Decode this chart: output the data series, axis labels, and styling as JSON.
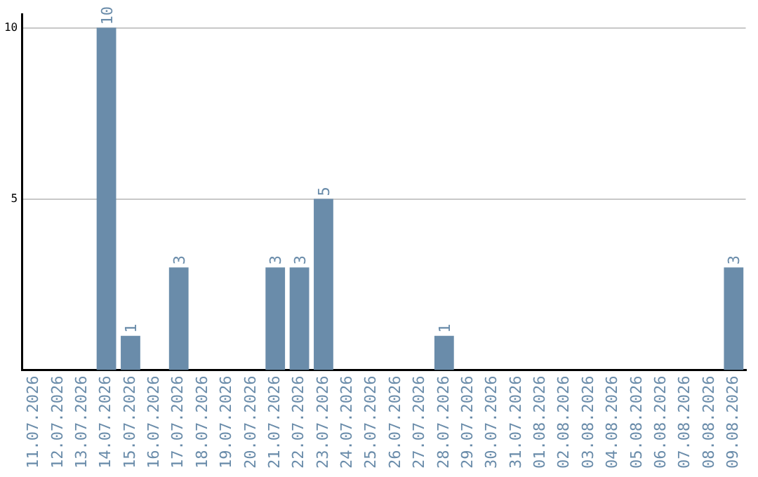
{
  "chart_data": {
    "type": "bar",
    "categories": [
      "11.07.2026",
      "12.07.2026",
      "13.07.2026",
      "14.07.2026",
      "15.07.2026",
      "16.07.2026",
      "17.07.2026",
      "18.07.2026",
      "19.07.2026",
      "20.07.2026",
      "21.07.2026",
      "22.07.2026",
      "23.07.2026",
      "24.07.2026",
      "25.07.2026",
      "26.07.2026",
      "27.07.2026",
      "28.07.2026",
      "29.07.2026",
      "30.07.2026",
      "31.07.2026",
      "01.08.2026",
      "02.08.2026",
      "03.08.2026",
      "04.08.2026",
      "05.08.2026",
      "06.08.2026",
      "07.08.2026",
      "08.08.2026",
      "09.08.2026"
    ],
    "values": [
      0,
      0,
      0,
      10,
      1,
      0,
      3,
      0,
      0,
      0,
      3,
      3,
      5,
      0,
      0,
      0,
      0,
      1,
      0,
      0,
      0,
      0,
      0,
      0,
      0,
      0,
      0,
      0,
      0,
      3
    ],
    "value_labels": [
      null,
      null,
      null,
      "10",
      "1",
      null,
      "3",
      null,
      null,
      null,
      "3",
      "3",
      "5",
      null,
      null,
      null,
      null,
      "1",
      null,
      null,
      null,
      null,
      null,
      null,
      null,
      null,
      null,
      null,
      null,
      "3"
    ],
    "color": "#6a8caa",
    "ylim": [
      0,
      10.4
    ],
    "yticks": [
      5,
      10
    ],
    "grid": "y",
    "legend": false
  }
}
